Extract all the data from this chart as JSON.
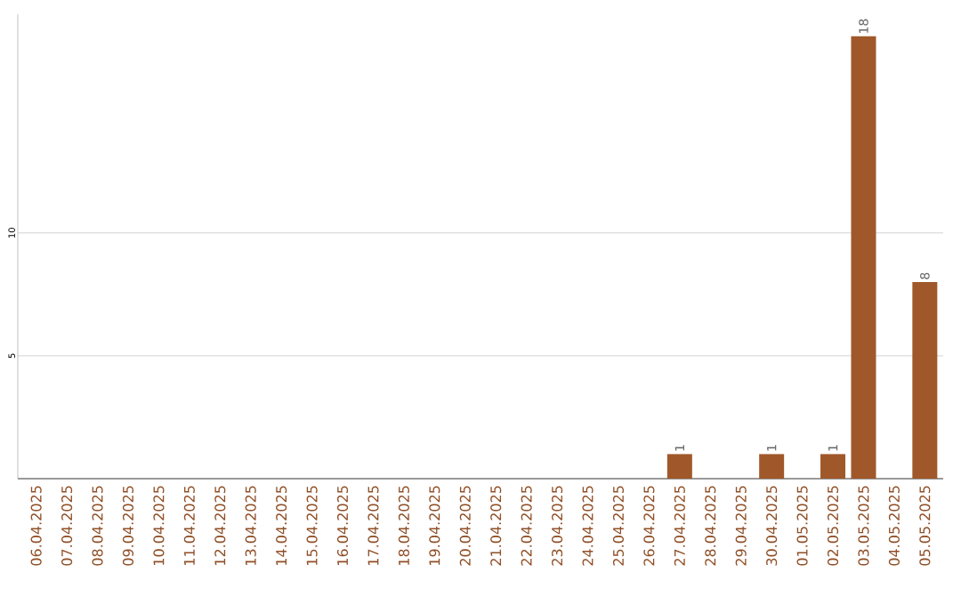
{
  "chart_data": {
    "type": "bar",
    "categories": [
      "06.04.2025",
      "07.04.2025",
      "08.04.2025",
      "09.04.2025",
      "10.04.2025",
      "11.04.2025",
      "12.04.2025",
      "13.04.2025",
      "14.04.2025",
      "15.04.2025",
      "16.04.2025",
      "17.04.2025",
      "18.04.2025",
      "19.04.2025",
      "20.04.2025",
      "21.04.2025",
      "22.04.2025",
      "23.04.2025",
      "24.04.2025",
      "25.04.2025",
      "26.04.2025",
      "27.04.2025",
      "28.04.2025",
      "29.04.2025",
      "30.04.2025",
      "01.05.2025",
      "02.05.2025",
      "03.05.2025",
      "04.05.2025",
      "05.05.2025"
    ],
    "values": [
      0,
      0,
      0,
      0,
      0,
      0,
      0,
      0,
      0,
      0,
      0,
      0,
      0,
      0,
      0,
      0,
      0,
      0,
      0,
      0,
      0,
      1,
      0,
      0,
      1,
      0,
      1,
      18,
      0,
      8
    ],
    "value_labels": [
      null,
      null,
      null,
      null,
      null,
      null,
      null,
      null,
      null,
      null,
      null,
      null,
      null,
      null,
      null,
      null,
      null,
      null,
      null,
      null,
      null,
      "1",
      null,
      null,
      "1",
      null,
      "1",
      "18",
      null,
      "8"
    ],
    "color": "#a0582a",
    "ylim": [
      0,
      18.9
    ],
    "yticks": [
      5,
      10
    ],
    "grid": "y"
  }
}
